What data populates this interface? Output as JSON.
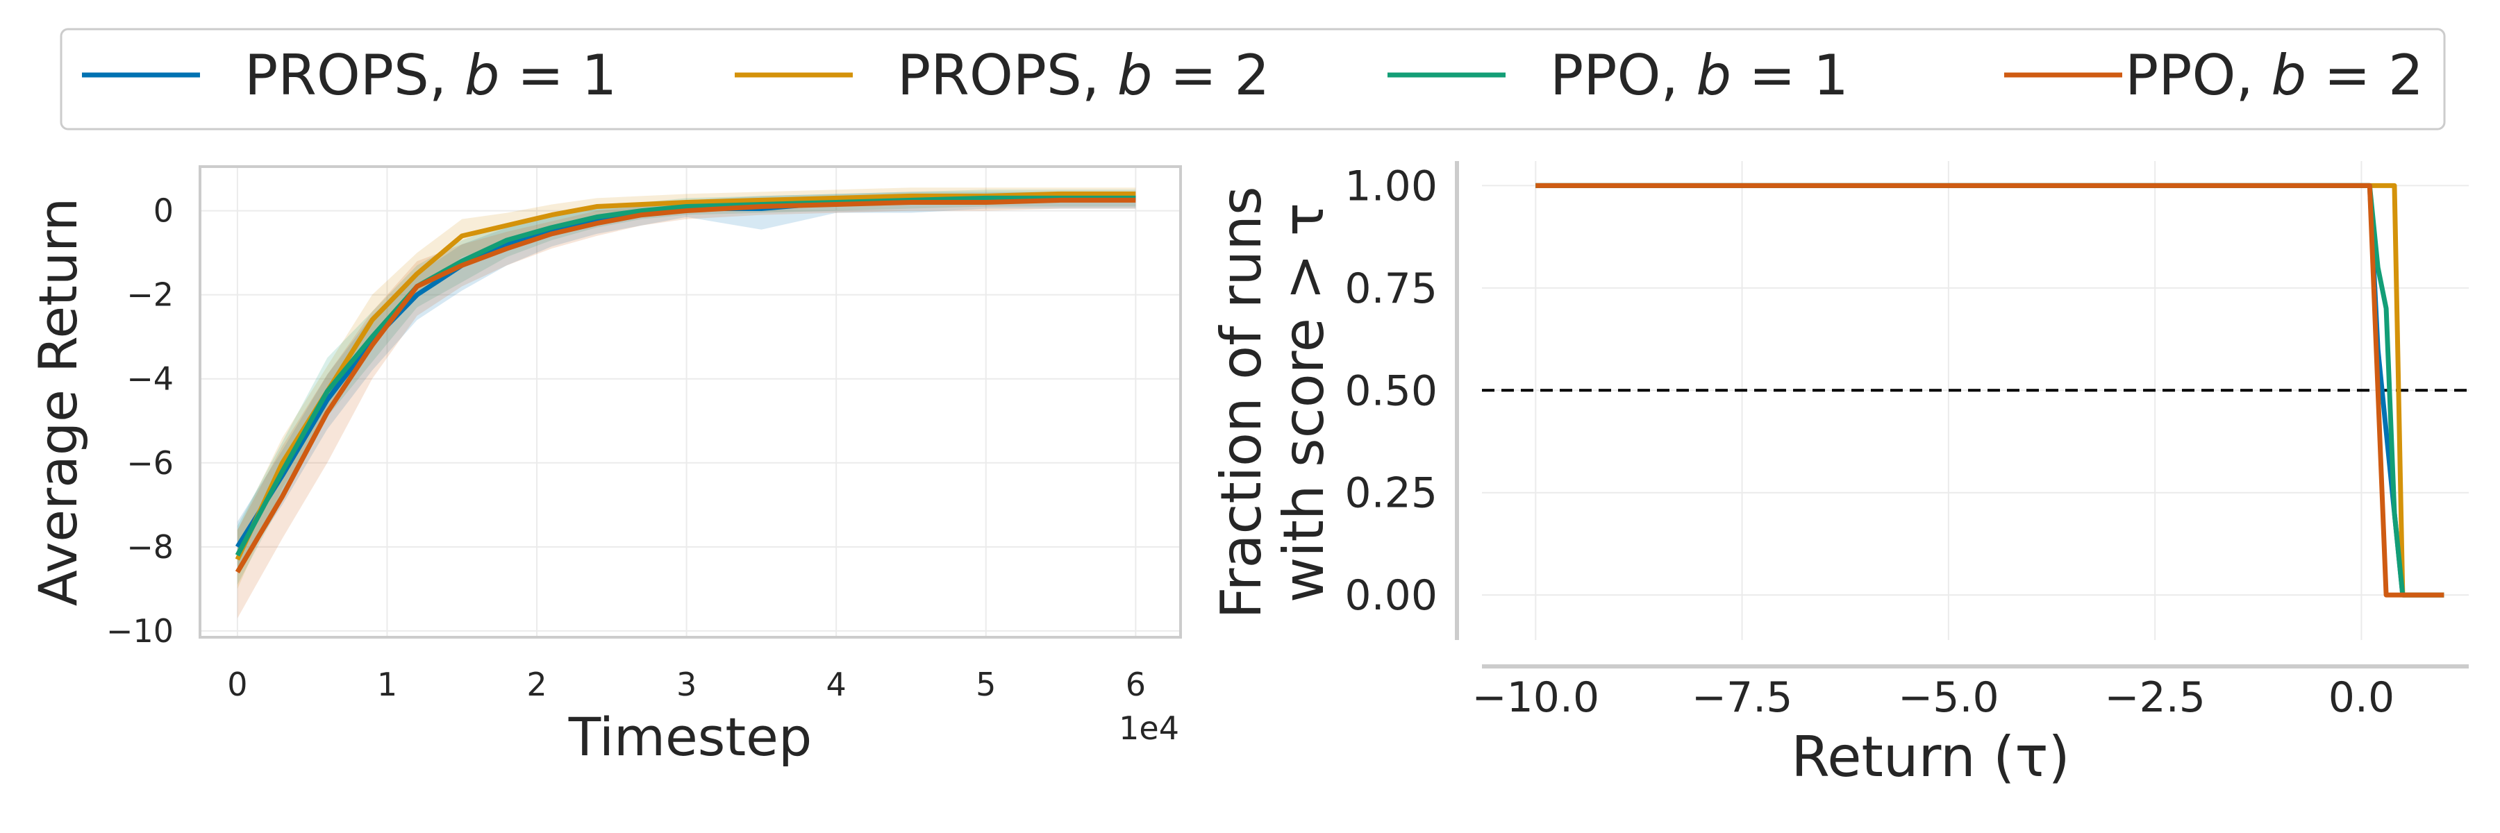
{
  "colors": {
    "props_b1": "#0072B2",
    "props_b2": "#D4920A",
    "ppo_b1": "#139E76",
    "ppo_b2": "#CF5B12",
    "reference_line": "#000000"
  },
  "legend": {
    "placement": "top-center",
    "items": [
      {
        "name": "PROPS, b = 1",
        "prefix": "PROPS, ",
        "var": "b",
        "rest": " = 1",
        "color_key": "props_b1"
      },
      {
        "name": "PROPS, b = 2",
        "prefix": "PROPS, ",
        "var": "b",
        "rest": " = 2",
        "color_key": "props_b2"
      },
      {
        "name": "PPO, b = 1",
        "prefix": "PPO, ",
        "var": "b",
        "rest": " = 1",
        "color_key": "ppo_b1"
      },
      {
        "name": "PPO, b = 2",
        "prefix": "PPO, ",
        "var": "b",
        "rest": " = 2",
        "color_key": "ppo_b2"
      }
    ]
  },
  "chart_data": [
    {
      "type": "line",
      "xlabel": "Timestep",
      "x_offset_label": "1e4",
      "ylabel": "Average Return",
      "xlim": [
        -0.25,
        6.3
      ],
      "ylim": [
        -10.15,
        1.05
      ],
      "xticks": [
        0,
        1,
        2,
        3,
        4,
        5,
        6
      ],
      "xtick_labels": [
        "0",
        "1",
        "2",
        "3",
        "4",
        "5",
        "6"
      ],
      "yticks": [
        0,
        -2,
        -4,
        -6,
        -8,
        -10
      ],
      "ytick_labels": [
        "0",
        "−2",
        "−4",
        "−6",
        "−8",
        "−10"
      ],
      "grid": true,
      "x": [
        0,
        0.3,
        0.6,
        0.9,
        1.2,
        1.5,
        1.8,
        2.1,
        2.4,
        2.7,
        3.0,
        3.5,
        4.0,
        4.5,
        5.0,
        5.5,
        6.0
      ],
      "series": [
        {
          "name": "PROPS, b = 1",
          "color_key": "props_b1",
          "values": [
            -8.0,
            -6.3,
            -4.5,
            -3.1,
            -2.0,
            -1.3,
            -0.8,
            -0.45,
            -0.2,
            -0.05,
            0.05,
            0.05,
            0.2,
            0.25,
            0.28,
            0.3,
            0.3
          ],
          "lower": [
            -8.6,
            -7.0,
            -5.2,
            -3.8,
            -2.6,
            -1.9,
            -1.3,
            -0.85,
            -0.55,
            -0.35,
            -0.15,
            -0.45,
            -0.05,
            -0.05,
            0.05,
            0.05,
            0.05
          ],
          "upper": [
            -7.4,
            -5.7,
            -3.9,
            -2.5,
            -1.5,
            -0.8,
            -0.4,
            -0.1,
            0.1,
            0.2,
            0.25,
            0.35,
            0.4,
            0.45,
            0.45,
            0.45,
            0.45
          ]
        },
        {
          "name": "PROPS, b = 2",
          "color_key": "props_b2",
          "values": [
            -8.3,
            -6.0,
            -4.3,
            -2.6,
            -1.5,
            -0.6,
            -0.35,
            -0.1,
            0.1,
            0.15,
            0.2,
            0.25,
            0.3,
            0.35,
            0.35,
            0.4,
            0.4
          ],
          "lower": [
            -9.0,
            -6.6,
            -4.9,
            -3.2,
            -2.0,
            -1.1,
            -0.75,
            -0.4,
            -0.15,
            -0.05,
            0.0,
            0.05,
            0.1,
            0.15,
            0.15,
            0.2,
            0.2
          ],
          "upper": [
            -7.6,
            -5.4,
            -3.7,
            -2.0,
            -1.0,
            -0.2,
            -0.05,
            0.15,
            0.3,
            0.35,
            0.4,
            0.45,
            0.5,
            0.55,
            0.55,
            0.55,
            0.55
          ]
        },
        {
          "name": "PPO, b = 1",
          "color_key": "ppo_b1",
          "values": [
            -8.2,
            -6.2,
            -4.3,
            -3.0,
            -1.8,
            -1.2,
            -0.7,
            -0.4,
            -0.15,
            0.0,
            0.1,
            0.15,
            0.2,
            0.25,
            0.3,
            0.3,
            0.3
          ],
          "lower": [
            -8.9,
            -6.9,
            -4.9,
            -3.6,
            -2.3,
            -1.7,
            -1.1,
            -0.7,
            -0.4,
            -0.2,
            -0.1,
            -0.05,
            0.0,
            0.05,
            0.1,
            0.1,
            0.1
          ],
          "upper": [
            -7.5,
            -5.5,
            -3.5,
            -2.4,
            -1.3,
            -0.7,
            -0.3,
            -0.1,
            0.1,
            0.2,
            0.3,
            0.35,
            0.4,
            0.45,
            0.5,
            0.5,
            0.5
          ]
        },
        {
          "name": "PPO, b = 2",
          "color_key": "ppo_b2",
          "values": [
            -8.6,
            -6.8,
            -4.8,
            -3.2,
            -1.8,
            -1.3,
            -0.9,
            -0.55,
            -0.3,
            -0.1,
            0.0,
            0.1,
            0.15,
            0.2,
            0.2,
            0.25,
            0.25
          ],
          "lower": [
            -9.7,
            -7.8,
            -6.0,
            -4.0,
            -2.5,
            -1.8,
            -1.3,
            -0.9,
            -0.6,
            -0.35,
            -0.2,
            -0.1,
            -0.05,
            0.0,
            0.0,
            0.05,
            0.05
          ],
          "upper": [
            -7.6,
            -5.6,
            -3.9,
            -2.4,
            -1.2,
            -0.8,
            -0.5,
            -0.25,
            0.0,
            0.1,
            0.2,
            0.3,
            0.35,
            0.4,
            0.4,
            0.45,
            0.45
          ]
        }
      ]
    },
    {
      "type": "line",
      "xlabel": "Return (τ)",
      "ylabel": [
        "Fraction of runs",
        "with score > τ"
      ],
      "xlim": [
        -10.65,
        1.3
      ],
      "ylim": [
        -0.11,
        1.06
      ],
      "xticks": [
        -10,
        -7.5,
        -5,
        -2.5,
        0
      ],
      "xtick_labels": [
        "−10.0",
        "−7.5",
        "−5.0",
        "−2.5",
        "0.0"
      ],
      "yticks": [
        0,
        0.25,
        0.5,
        0.75,
        1.0
      ],
      "ytick_labels": [
        "0.00",
        "0.25",
        "0.50",
        "0.75",
        "1.00"
      ],
      "grid": true,
      "reference_line": {
        "y": 0.5,
        "style": "dashed"
      },
      "series": [
        {
          "name": "PROPS, b = 1",
          "color_key": "props_b1",
          "x": [
            -10,
            0.1,
            0.2,
            0.3,
            0.4,
            0.5,
            1.0
          ],
          "values": [
            1.0,
            1.0,
            0.6,
            0.4,
            0.2,
            0.0,
            0.0
          ]
        },
        {
          "name": "PROPS, b = 2",
          "color_key": "props_b2",
          "x": [
            -10,
            0.4,
            0.5,
            1.0
          ],
          "values": [
            1.0,
            1.0,
            0.0,
            0.0
          ]
        },
        {
          "name": "PPO, b = 1",
          "color_key": "ppo_b1",
          "x": [
            -10,
            0.1,
            0.2,
            0.3,
            0.4,
            0.5,
            1.0
          ],
          "values": [
            1.0,
            1.0,
            0.8,
            0.7,
            0.2,
            0.0,
            0.0
          ]
        },
        {
          "name": "PPO, b = 2",
          "color_key": "ppo_b2",
          "x": [
            -10,
            0.1,
            0.3,
            1.0
          ],
          "values": [
            1.0,
            1.0,
            0.0,
            0.0
          ]
        }
      ]
    }
  ]
}
